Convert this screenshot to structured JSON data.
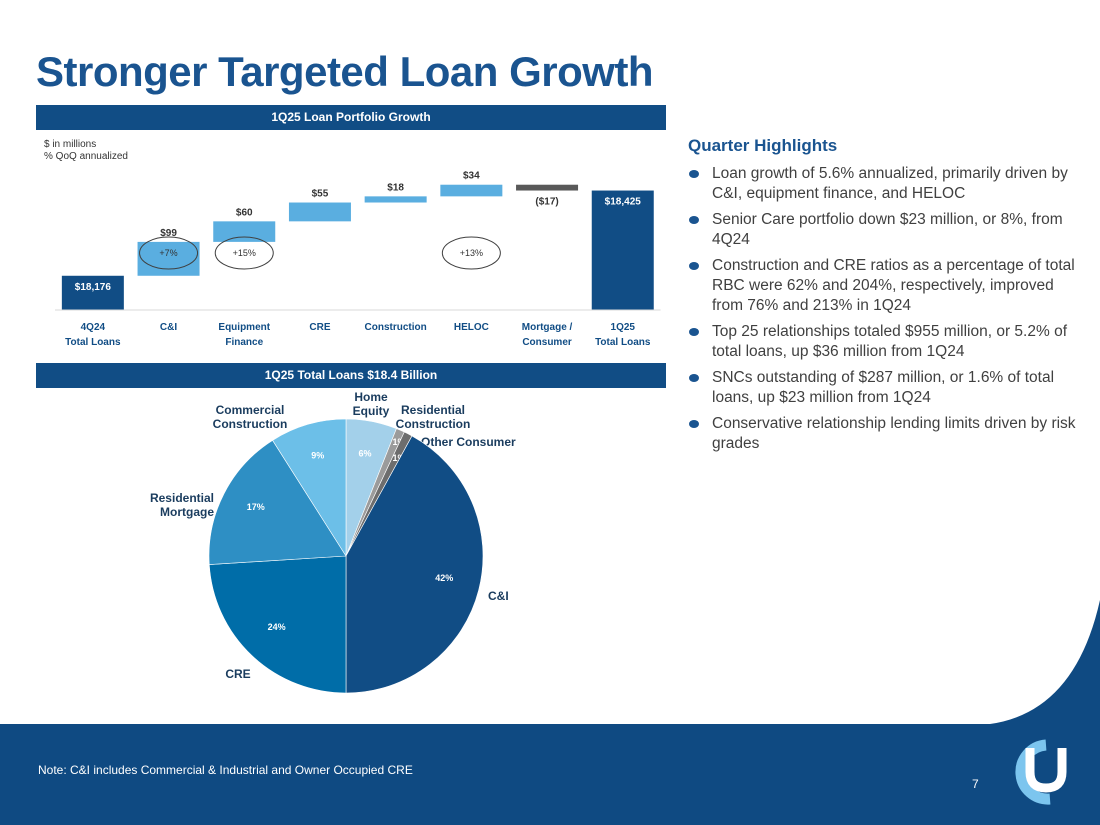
{
  "title": "Stronger Targeted Loan Growth",
  "waterfall": {
    "banner": "1Q25 Loan Portfolio Growth",
    "units_line1": "$ in millions",
    "units_line2": "% QoQ annualized"
  },
  "pie_banner": "1Q25 Total Loans $18.4 Billion",
  "chart_data": [
    {
      "type": "bar",
      "subtype": "waterfall",
      "title": "1Q25 Loan Portfolio Growth",
      "unit": "$ in millions",
      "categories": [
        [
          "4Q24",
          "Total Loans"
        ],
        [
          "C&I"
        ],
        [
          "Equipment",
          "Finance"
        ],
        [
          "CRE"
        ],
        [
          "Construction"
        ],
        [
          "HELOC"
        ],
        [
          "Mortgage /",
          "Consumer"
        ],
        [
          "1Q25",
          "Total Loans"
        ]
      ],
      "values": [
        18176,
        99,
        60,
        55,
        18,
        34,
        -17,
        18425
      ],
      "kinds": [
        "total",
        "delta",
        "delta",
        "delta",
        "delta",
        "delta",
        "delta",
        "total"
      ],
      "labels": [
        "$18,176",
        "$99",
        "$60",
        "$55",
        "$18",
        "$34",
        "($17)",
        "$18,425"
      ],
      "growth_labels": [
        "",
        "+7%",
        "+15%",
        "",
        "",
        "+13%",
        "",
        ""
      ],
      "colors": {
        "total": "#114d85",
        "delta": "#5aaee0",
        "negative": "#595959"
      }
    },
    {
      "type": "pie",
      "title": "1Q25 Total Loans $18.4 Billion",
      "slices": [
        {
          "name": "Home Equity",
          "label": [
            "Home",
            "Equity"
          ],
          "value": 6,
          "pct": "6%",
          "color": "#a3d0ea"
        },
        {
          "name": "Residential Construction",
          "label": [
            "Residential",
            "Construction"
          ],
          "value": 1,
          "pct": "1%",
          "color": "#9b9b9b"
        },
        {
          "name": "Other Consumer",
          "label": [
            "Other Consumer"
          ],
          "value": 1,
          "pct": "1%",
          "color": "#6d6d6d"
        },
        {
          "name": "C&I",
          "label": [
            "C&I"
          ],
          "value": 42,
          "pct": "42%",
          "color": "#114d85"
        },
        {
          "name": "CRE",
          "label": [
            "CRE"
          ],
          "value": 24,
          "pct": "24%",
          "color": "#006da8"
        },
        {
          "name": "Residential Mortgage",
          "label": [
            "Residential",
            "Mortgage"
          ],
          "value": 17,
          "pct": "17%",
          "color": "#2e8fc4"
        },
        {
          "name": "Commercial Construction",
          "label": [
            "Commercial",
            "Construction"
          ],
          "value": 9,
          "pct": "9%",
          "color": "#6cbfe8"
        }
      ]
    }
  ],
  "highlights": {
    "title": "Quarter Highlights",
    "bullets": [
      "Loan growth of 5.6% annualized, primarily driven by C&I, equipment finance, and HELOC",
      "Senior Care portfolio down $23 million, or 8%, from 4Q24",
      "Construction and CRE ratios as a percentage of total RBC were 62% and 204%, respectively, improved from 76% and 213% in 1Q24",
      "Top 25 relationships totaled $955 million, or 5.2% of total loans, up $36 million from 1Q24",
      "SNCs outstanding of $287 million, or 1.6% of total loans, up $23 million from 1Q24",
      "Conservative relationship lending limits driven by risk grades"
    ]
  },
  "footer": {
    "note": "Note: C&I includes Commercial & Industrial and Owner Occupied CRE",
    "page_number": "7"
  },
  "colors": {
    "brand_navy": "#114d85",
    "title_blue": "#1a5490",
    "footer_navy": "#0f4a82",
    "logo_light": "#7cc5ee"
  }
}
